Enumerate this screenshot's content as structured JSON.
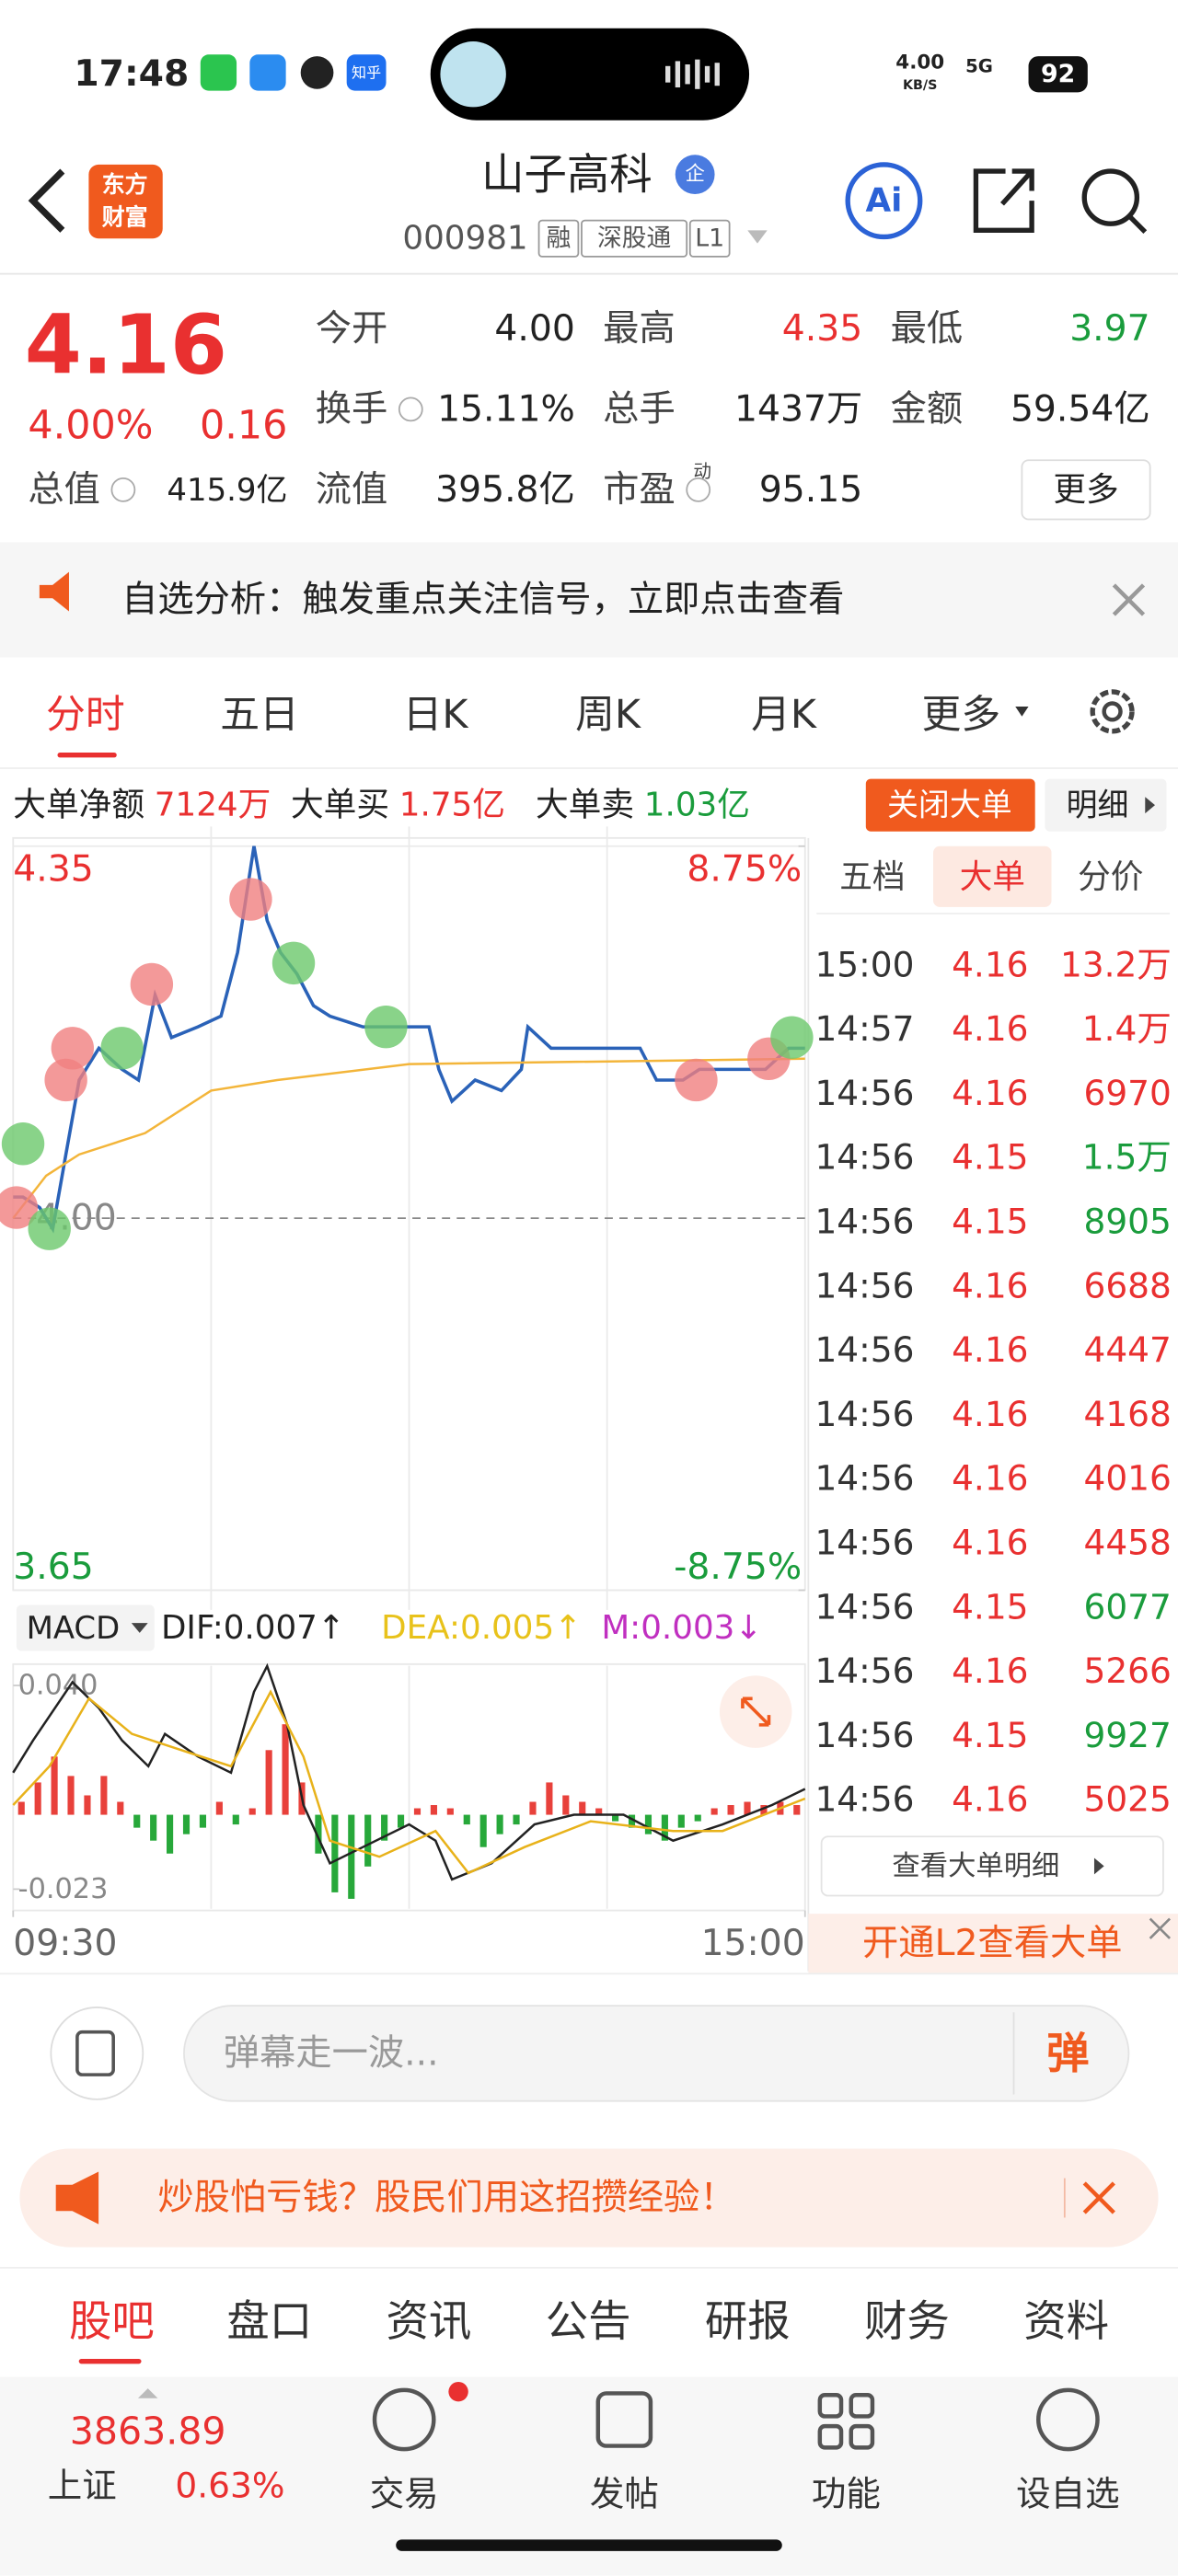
{
  "status_bar": {
    "time": "17:48",
    "app_text": "知乎",
    "net_speed": "4.00",
    "net_unit": "KB/S",
    "signal": "5G",
    "battery": "92"
  },
  "header": {
    "logo": [
      "东方",
      "财富"
    ],
    "name": "山子高科",
    "badge": "企",
    "code": "000981",
    "tags": [
      "融",
      "深股通",
      "L1"
    ],
    "ai": "Ai"
  },
  "quote": {
    "price": "4.16",
    "change_pct": "4.00%",
    "change": "0.16",
    "color": "#e93030",
    "rows": [
      [
        {
          "label": "今开",
          "value": "4.00",
          "color": "#222222"
        },
        {
          "label": "最高",
          "value": "4.35",
          "color": "#e93030"
        },
        {
          "label": "最低",
          "value": "3.97",
          "color": "#1a9c3c"
        }
      ],
      [
        {
          "label": "换手",
          "value": "15.11%",
          "color": "#222222"
        },
        {
          "label": "总手",
          "value": "1437万",
          "color": "#222222"
        },
        {
          "label": "金额",
          "value": "59.54亿",
          "color": "#222222"
        }
      ],
      [
        {
          "label": "总值",
          "value": "415.9亿",
          "color": "#222222"
        },
        {
          "label": "流值",
          "value": "395.8亿",
          "color": "#222222"
        },
        {
          "label": "市盈",
          "sup": "动",
          "value": "95.15",
          "color": "#222222"
        }
      ]
    ],
    "more": "更多"
  },
  "notice": "自选分析：触发重点关注信号，立即点击查看",
  "chart_tabs": [
    "分时",
    "五日",
    "日K",
    "周K",
    "月K",
    "更多"
  ],
  "big_order": {
    "items": [
      {
        "label": "大单净额",
        "value": "7124万",
        "color": "#e93030"
      },
      {
        "label": "大单买",
        "value": "1.75亿",
        "color": "#e93030"
      },
      {
        "label": "大单卖",
        "value": "1.03亿",
        "color": "#1a9c3c"
      }
    ],
    "close": "关闭大单",
    "detail": "明细"
  },
  "chart_data": [
    {
      "type": "line",
      "xlim": [
        0,
        240
      ],
      "ylim": [
        3.65,
        4.35
      ],
      "yticks": [
        3.65,
        {
          "value": 4.0,
          "label": "4.00"
        },
        4.35
      ],
      "y2lim": [
        -8.75,
        8.75
      ],
      "y2ticks": [
        {
          "value": -8.75,
          "label": "-8.75%"
        },
        {
          "value": 8.75,
          "label": "8.75%"
        }
      ],
      "xticks": [
        {
          "value": 0,
          "label": "09:30"
        },
        {
          "value": 240,
          "label": "15:00"
        }
      ],
      "xgrid": [
        60,
        120,
        180
      ],
      "series": [
        {
          "color": "#2a62b8",
          "x": [
            0,
            3,
            8,
            12,
            16,
            20,
            26,
            33,
            38,
            43,
            48,
            56,
            63,
            68,
            73,
            77,
            81,
            86,
            91,
            96,
            106,
            118,
            126,
            129,
            133,
            140,
            148,
            154,
            156,
            163,
            175,
            190,
            195,
            203,
            208,
            218,
            228,
            235,
            240
          ],
          "values": [
            4.02,
            4.02,
            4.01,
            3.99,
            4.06,
            4.13,
            4.16,
            4.14,
            4.13,
            4.21,
            4.17,
            4.18,
            4.19,
            4.25,
            4.35,
            4.28,
            4.25,
            4.23,
            4.2,
            4.19,
            4.18,
            4.18,
            4.18,
            4.14,
            4.11,
            4.13,
            4.12,
            4.14,
            4.18,
            4.16,
            4.16,
            4.16,
            4.13,
            4.13,
            4.14,
            4.14,
            4.14,
            4.16,
            4.16
          ]
        },
        {
          "color": "#f3b53a",
          "x": [
            0,
            10,
            20,
            40,
            60,
            80,
            120,
            240
          ],
          "values": [
            4.0,
            4.04,
            4.06,
            4.08,
            4.12,
            4.13,
            4.145,
            4.15
          ]
        }
      ],
      "markers": {
        "x": [
          1,
          3,
          11,
          16,
          18,
          33,
          42,
          72,
          85,
          113,
          207,
          229,
          236
        ],
        "values": [
          4.01,
          4.07,
          3.99,
          4.13,
          4.16,
          4.16,
          4.22,
          4.3,
          4.24,
          4.18,
          4.13,
          4.15,
          4.17
        ],
        "colors": [
          "#f08080",
          "#6cc86c",
          "#6cc86c",
          "#f08080",
          "#f08080",
          "#6cc86c",
          "#f08080",
          "#f08080",
          "#6cc86c",
          "#6cc86c",
          "#f08080",
          "#f08080",
          "#6cc86c"
        ]
      }
    },
    {
      "type": "macd",
      "selector": "MACD",
      "legend": [
        {
          "text": "DIF:0.007↑",
          "color": "#222222"
        },
        {
          "text": "DEA:0.005↑",
          "color": "#e8c21a"
        },
        {
          "text": "M:0.003↓",
          "color": "#c02fc0"
        }
      ],
      "xlim": [
        0,
        240
      ],
      "ylim": [
        -0.023,
        0.04
      ],
      "yticks": [
        -0.023,
        {
          "value": 0.04,
          "label": "0.040"
        }
      ],
      "xgrid": [
        60,
        120,
        180
      ],
      "series": [
        {
          "color": "#222222",
          "x": [
            0,
            6,
            18,
            26,
            33,
            41,
            46,
            56,
            66,
            73,
            77,
            83,
            88,
            96,
            106,
            120,
            128,
            133,
            145,
            158,
            170,
            185,
            200,
            215,
            230,
            240
          ],
          "values": [
            0.013,
            0.023,
            0.041,
            0.033,
            0.023,
            0.015,
            0.025,
            0.018,
            0.013,
            0.038,
            0.046,
            0.028,
            0.003,
            -0.015,
            -0.01,
            -0.003,
            -0.008,
            -0.02,
            -0.015,
            -0.003,
            0,
            0,
            -0.008,
            -0.003,
            0.003,
            0.008
          ]
        },
        {
          "color": "#e8b21a",
          "x": [
            0,
            11,
            23,
            36,
            51,
            66,
            78,
            88,
            96,
            111,
            128,
            138,
            155,
            175,
            200,
            215,
            240
          ],
          "values": [
            0.003,
            0.015,
            0.036,
            0.025,
            0.02,
            0.015,
            0.038,
            0.018,
            -0.008,
            -0.013,
            -0.005,
            -0.018,
            -0.01,
            -0.002,
            -0.005,
            -0.005,
            0.005
          ]
        }
      ],
      "histogram": {
        "x": [
          2.5,
          7.5,
          12.5,
          17.5,
          22.5,
          27.5,
          32.5,
          37.5,
          42.5,
          47.5,
          52.5,
          57.5,
          62.5,
          67.5,
          72.5,
          77.5,
          82.5,
          87.5,
          92.5,
          97.5,
          102.5,
          107.5,
          112.5,
          117.5,
          122.5,
          127.5,
          132.5,
          137.5,
          142.5,
          147.5,
          152.5,
          157.5,
          162.5,
          167.5,
          172.5,
          177.5,
          182.5,
          187.5,
          192.5,
          197.5,
          202.5,
          207.5,
          212.5,
          217.5,
          222.5,
          227.5,
          232.5,
          237.5
        ],
        "values": [
          0.004,
          0.01,
          0.018,
          0.012,
          0.006,
          0.012,
          0.004,
          -0.004,
          -0.008,
          -0.012,
          -0.006,
          -0.004,
          0.004,
          -0.003,
          0.002,
          0.02,
          0.028,
          0.01,
          -0.012,
          -0.024,
          -0.026,
          -0.016,
          -0.008,
          -0.004,
          0.002,
          0.003,
          0.002,
          -0.003,
          -0.01,
          -0.006,
          -0.003,
          0.004,
          0.01,
          0.006,
          0.004,
          0.002,
          -0.002,
          -0.004,
          -0.006,
          -0.008,
          -0.004,
          -0.002,
          0.002,
          0.003,
          0.004,
          0.003,
          0.004,
          0.003
        ],
        "up_color": "#e8413b",
        "down_color": "#27a83a"
      }
    }
  ],
  "side_tabs": [
    "五档",
    "大单",
    "分价"
  ],
  "trades": [
    {
      "time": "15:00",
      "price": "4.16",
      "volume": "13.2万",
      "color": "#e93030"
    },
    {
      "time": "14:57",
      "price": "4.16",
      "volume": "1.4万",
      "color": "#e93030"
    },
    {
      "time": "14:56",
      "price": "4.16",
      "volume": "6970",
      "color": "#e93030"
    },
    {
      "time": "14:56",
      "price": "4.15",
      "volume": "1.5万",
      "color": "#1a9c3c"
    },
    {
      "time": "14:56",
      "price": "4.15",
      "volume": "8905",
      "color": "#1a9c3c"
    },
    {
      "time": "14:56",
      "price": "4.16",
      "volume": "6688",
      "color": "#e93030"
    },
    {
      "time": "14:56",
      "price": "4.16",
      "volume": "4447",
      "color": "#e93030"
    },
    {
      "time": "14:56",
      "price": "4.16",
      "volume": "4168",
      "color": "#e93030"
    },
    {
      "time": "14:56",
      "price": "4.16",
      "volume": "4016",
      "color": "#e93030"
    },
    {
      "time": "14:56",
      "price": "4.16",
      "volume": "4458",
      "color": "#e93030"
    },
    {
      "time": "14:56",
      "price": "4.15",
      "volume": "6077",
      "color": "#1a9c3c"
    },
    {
      "time": "14:56",
      "price": "4.16",
      "volume": "5266",
      "color": "#e93030"
    },
    {
      "time": "14:56",
      "price": "4.15",
      "volume": "9927",
      "color": "#1a9c3c"
    },
    {
      "time": "14:56",
      "price": "4.16",
      "volume": "5025",
      "color": "#e93030"
    }
  ],
  "trades_more": "查看大单明细",
  "l2": "开通L2查看大单",
  "comment": {
    "placeholder": "弹幕走一波...",
    "button": "弹"
  },
  "ad": "炒股怕亏钱？股民们用这招攒经验！",
  "bottom_tabs": [
    "股吧",
    "盘口",
    "资讯",
    "公告",
    "研报",
    "财务",
    "资料"
  ],
  "footer": {
    "index_value": "3863.89",
    "index_name": "上证",
    "index_change": "0.63%",
    "nav": [
      "交易",
      "发帖",
      "功能",
      "设自选"
    ]
  }
}
